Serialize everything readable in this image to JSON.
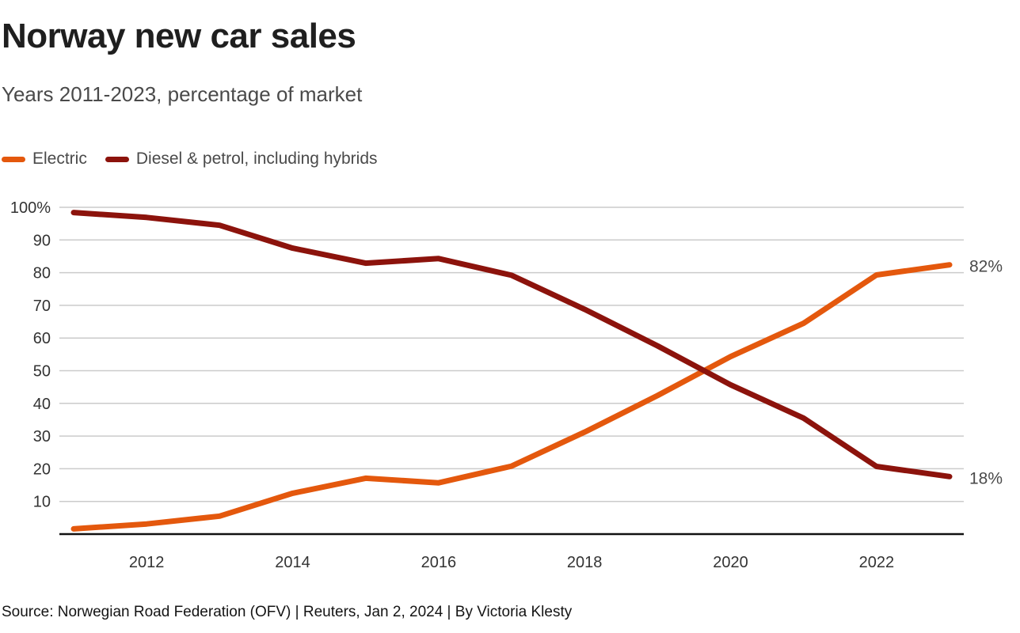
{
  "header": {
    "title": "Norway new car sales",
    "subtitle": "Years 2011-2023, percentage of market"
  },
  "legend": [
    {
      "label": "Electric",
      "color": "#E4580D",
      "icon": "line-swatch-icon"
    },
    {
      "label": "Diesel & petrol, including hybrids",
      "color": "#8C130C",
      "icon": "line-swatch-icon"
    }
  ],
  "chart_data": {
    "type": "line",
    "title": "Norway new car sales",
    "subtitle": "Years 2011-2023, percentage of market",
    "categories": [
      2011,
      2012,
      2013,
      2014,
      2015,
      2016,
      2017,
      2018,
      2019,
      2020,
      2021,
      2022,
      2023
    ],
    "x_tick_labels": [
      "2012",
      "2014",
      "2016",
      "2018",
      "2020",
      "2022"
    ],
    "series": [
      {
        "name": "Electric",
        "color": "#E4580D",
        "values": [
          1.6,
          3.1,
          5.5,
          12.5,
          17.1,
          15.7,
          20.8,
          31.2,
          42.4,
          54.3,
          64.5,
          79.3,
          82.4
        ],
        "end_label": "82%"
      },
      {
        "name": "Diesel & petrol, including hybrids",
        "color": "#8C130C",
        "values": [
          98.4,
          96.9,
          94.5,
          87.5,
          82.9,
          84.3,
          79.2,
          68.8,
          57.6,
          45.7,
          35.5,
          20.7,
          17.6
        ],
        "end_label": "18%"
      }
    ],
    "yticks": [
      10,
      20,
      30,
      40,
      50,
      60,
      70,
      80,
      90,
      100
    ],
    "ytick_labels": [
      "10",
      "20",
      "30",
      "40",
      "50",
      "60",
      "70",
      "80",
      "90",
      "100%"
    ],
    "ylim": [
      0,
      100
    ],
    "grid": true,
    "gridline_color": "#cbcbcb",
    "axis_line_color": "#111111",
    "legend_position": "top-left",
    "xlabel": "",
    "ylabel": ""
  },
  "footer": {
    "source": "Source: Norwegian Road Federation (OFV) | Reuters, Jan 2, 2024 | By Victoria Klesty"
  }
}
